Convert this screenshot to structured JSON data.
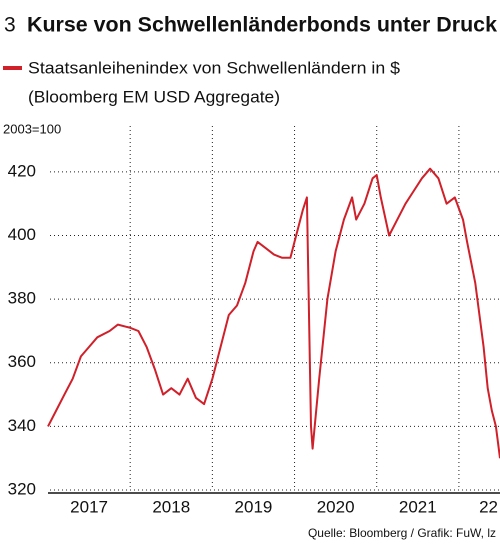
{
  "chart_data": {
    "type": "line",
    "number": "3",
    "title": "Kurse von Schwellenländerbonds unter Druck",
    "subtitle": "(Bloomberg EM USD Aggregate)",
    "y_label": "2003=100",
    "source": "Quelle: Bloomberg / Grafik: FuW, lz",
    "xlim": [
      2017,
      2022.5
    ],
    "xticks": [
      2018,
      2019,
      2020,
      2021,
      2022
    ],
    "year_labels": [
      {
        "value": 2017.5,
        "label": "2017"
      },
      {
        "value": 2018.5,
        "label": "2018"
      },
      {
        "value": 2019.5,
        "label": "2019"
      },
      {
        "value": 2020.5,
        "label": "2020"
      },
      {
        "value": 2021.5,
        "label": "2021"
      },
      {
        "value": 2022.5,
        "label": "22"
      }
    ],
    "ylim": [
      320,
      425
    ],
    "yticks": [
      320,
      340,
      360,
      380,
      400,
      420
    ],
    "grid": true,
    "x": [
      2017.0,
      2017.1,
      2017.2,
      2017.3,
      2017.4,
      2017.5,
      2017.6,
      2017.75,
      2017.85,
      2018.0,
      2018.1,
      2018.2,
      2018.3,
      2018.4,
      2018.5,
      2018.6,
      2018.7,
      2018.8,
      2018.9,
      2019.0,
      2019.1,
      2019.2,
      2019.3,
      2019.4,
      2019.5,
      2019.55,
      2019.65,
      2019.75,
      2019.85,
      2019.95,
      2020.0,
      2020.1,
      2020.15,
      2020.2,
      2020.22,
      2020.3,
      2020.4,
      2020.5,
      2020.6,
      2020.7,
      2020.75,
      2020.85,
      2020.95,
      2021.0,
      2021.05,
      2021.15,
      2021.25,
      2021.35,
      2021.45,
      2021.55,
      2021.65,
      2021.75,
      2021.85,
      2021.95,
      2022.05,
      2022.1,
      2022.2,
      2022.3,
      2022.35,
      2022.4,
      2022.45,
      2022.5
    ],
    "series": [
      {
        "name": "Staatsanleihenindex von Schwellenländern in $",
        "color": "#d0202a",
        "values": [
          340,
          345,
          350,
          355,
          362,
          365,
          368,
          370,
          372,
          371,
          370,
          365,
          358,
          350,
          352,
          350,
          355,
          349,
          347,
          355,
          365,
          375,
          378,
          385,
          395,
          398,
          396,
          394,
          393,
          393,
          398,
          408,
          412,
          340,
          333,
          355,
          380,
          395,
          405,
          412,
          405,
          410,
          418,
          419,
          412,
          400,
          405,
          410,
          414,
          418,
          421,
          418,
          410,
          412,
          405,
          398,
          385,
          365,
          352,
          345,
          340,
          330
        ]
      }
    ]
  }
}
